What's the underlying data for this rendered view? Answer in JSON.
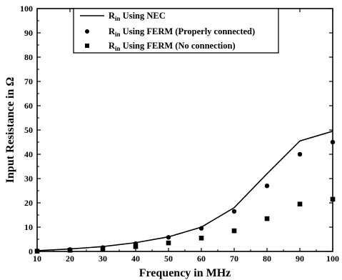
{
  "chart_data": {
    "type": "line",
    "title": "",
    "xlabel": "Frequency in MHz",
    "ylabel": "Input Resistance in Ω",
    "xlim": [
      10,
      100
    ],
    "ylim": [
      0,
      100
    ],
    "x_ticks": [
      10,
      20,
      30,
      40,
      50,
      60,
      70,
      80,
      90,
      100
    ],
    "y_ticks": [
      0,
      10,
      20,
      30,
      40,
      50,
      60,
      70,
      80,
      90,
      100
    ],
    "grid": false,
    "legend_position": "top-center",
    "series": [
      {
        "name": "R_in Using NEC",
        "label_main": "R",
        "label_sub": "in",
        "label_rest": " Using NEC",
        "style": "line",
        "x": [
          10,
          20,
          30,
          40,
          50,
          60,
          70,
          80,
          90,
          100
        ],
        "y": [
          0.3,
          1.0,
          2.0,
          3.6,
          6.0,
          10.0,
          18.0,
          32.0,
          45.5,
          49.5
        ]
      },
      {
        "name": "R_in Using FERM (Properly connected)",
        "label_main": "R",
        "label_sub": "in",
        "label_rest": " Using FERM (Properly connected)",
        "style": "circle",
        "x": [
          10,
          20,
          30,
          40,
          50,
          60,
          70,
          80,
          90,
          100
        ],
        "y": [
          0.2,
          0.8,
          1.6,
          3.2,
          5.8,
          9.5,
          16.5,
          27.0,
          40.0,
          45.0
        ]
      },
      {
        "name": "R_in Using FERM (No connection)",
        "label_main": "R",
        "label_sub": "in",
        "label_rest": " Using FERM (No connection)",
        "style": "square",
        "x": [
          10,
          20,
          30,
          40,
          50,
          60,
          70,
          80,
          90,
          100
        ],
        "y": [
          0.1,
          0.5,
          1.0,
          2.0,
          3.5,
          5.5,
          8.5,
          13.5,
          19.5,
          21.5
        ]
      }
    ]
  }
}
